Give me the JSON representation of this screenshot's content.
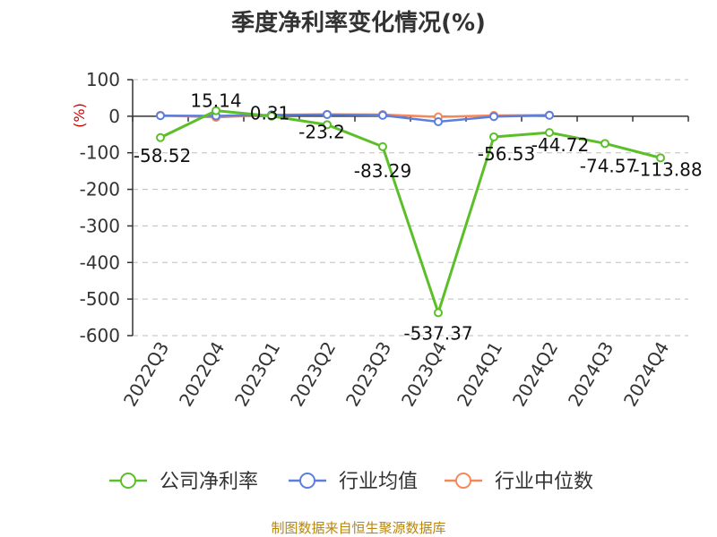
{
  "chart_data": {
    "type": "line",
    "title": "季度净利率变化情况(%)",
    "ylabel": "(%)",
    "categories": [
      "2022Q3",
      "2022Q4",
      "2023Q1",
      "2023Q2",
      "2023Q3",
      "2023Q4",
      "2024Q1",
      "2024Q2",
      "2024Q3",
      "2024Q4"
    ],
    "yticks": [
      100,
      0,
      -100,
      -200,
      -300,
      -400,
      -500,
      -600
    ],
    "ylim": [
      -600,
      100
    ],
    "grid": true,
    "legend_position": "bottom",
    "series": [
      {
        "name": "公司净利率",
        "color": "#5cbf2a",
        "values": [
          -58.52,
          15.14,
          0.31,
          -23.2,
          -83.29,
          -537.37,
          -56.53,
          -44.72,
          -74.57,
          -113.88
        ],
        "labels": [
          "-58.52",
          "15.14",
          "0.31",
          "-23.2",
          "-83.29",
          "-537.37",
          "-56.53",
          "-44.72",
          "-74.57",
          "-113.88"
        ]
      },
      {
        "name": "行业均值",
        "color": "#5b7fde",
        "values": [
          1.5,
          1.0,
          3.0,
          4.5,
          2.5,
          -15.0,
          -1.0,
          2.5,
          null,
          null
        ]
      },
      {
        "name": "行业中位数",
        "color": "#f5885a",
        "values": [
          2.5,
          -3.0,
          4.0,
          5.0,
          4.5,
          -2.0,
          2.0,
          3.0,
          null,
          null
        ]
      }
    ]
  },
  "source_text": "制图数据来自恒生聚源数据库"
}
